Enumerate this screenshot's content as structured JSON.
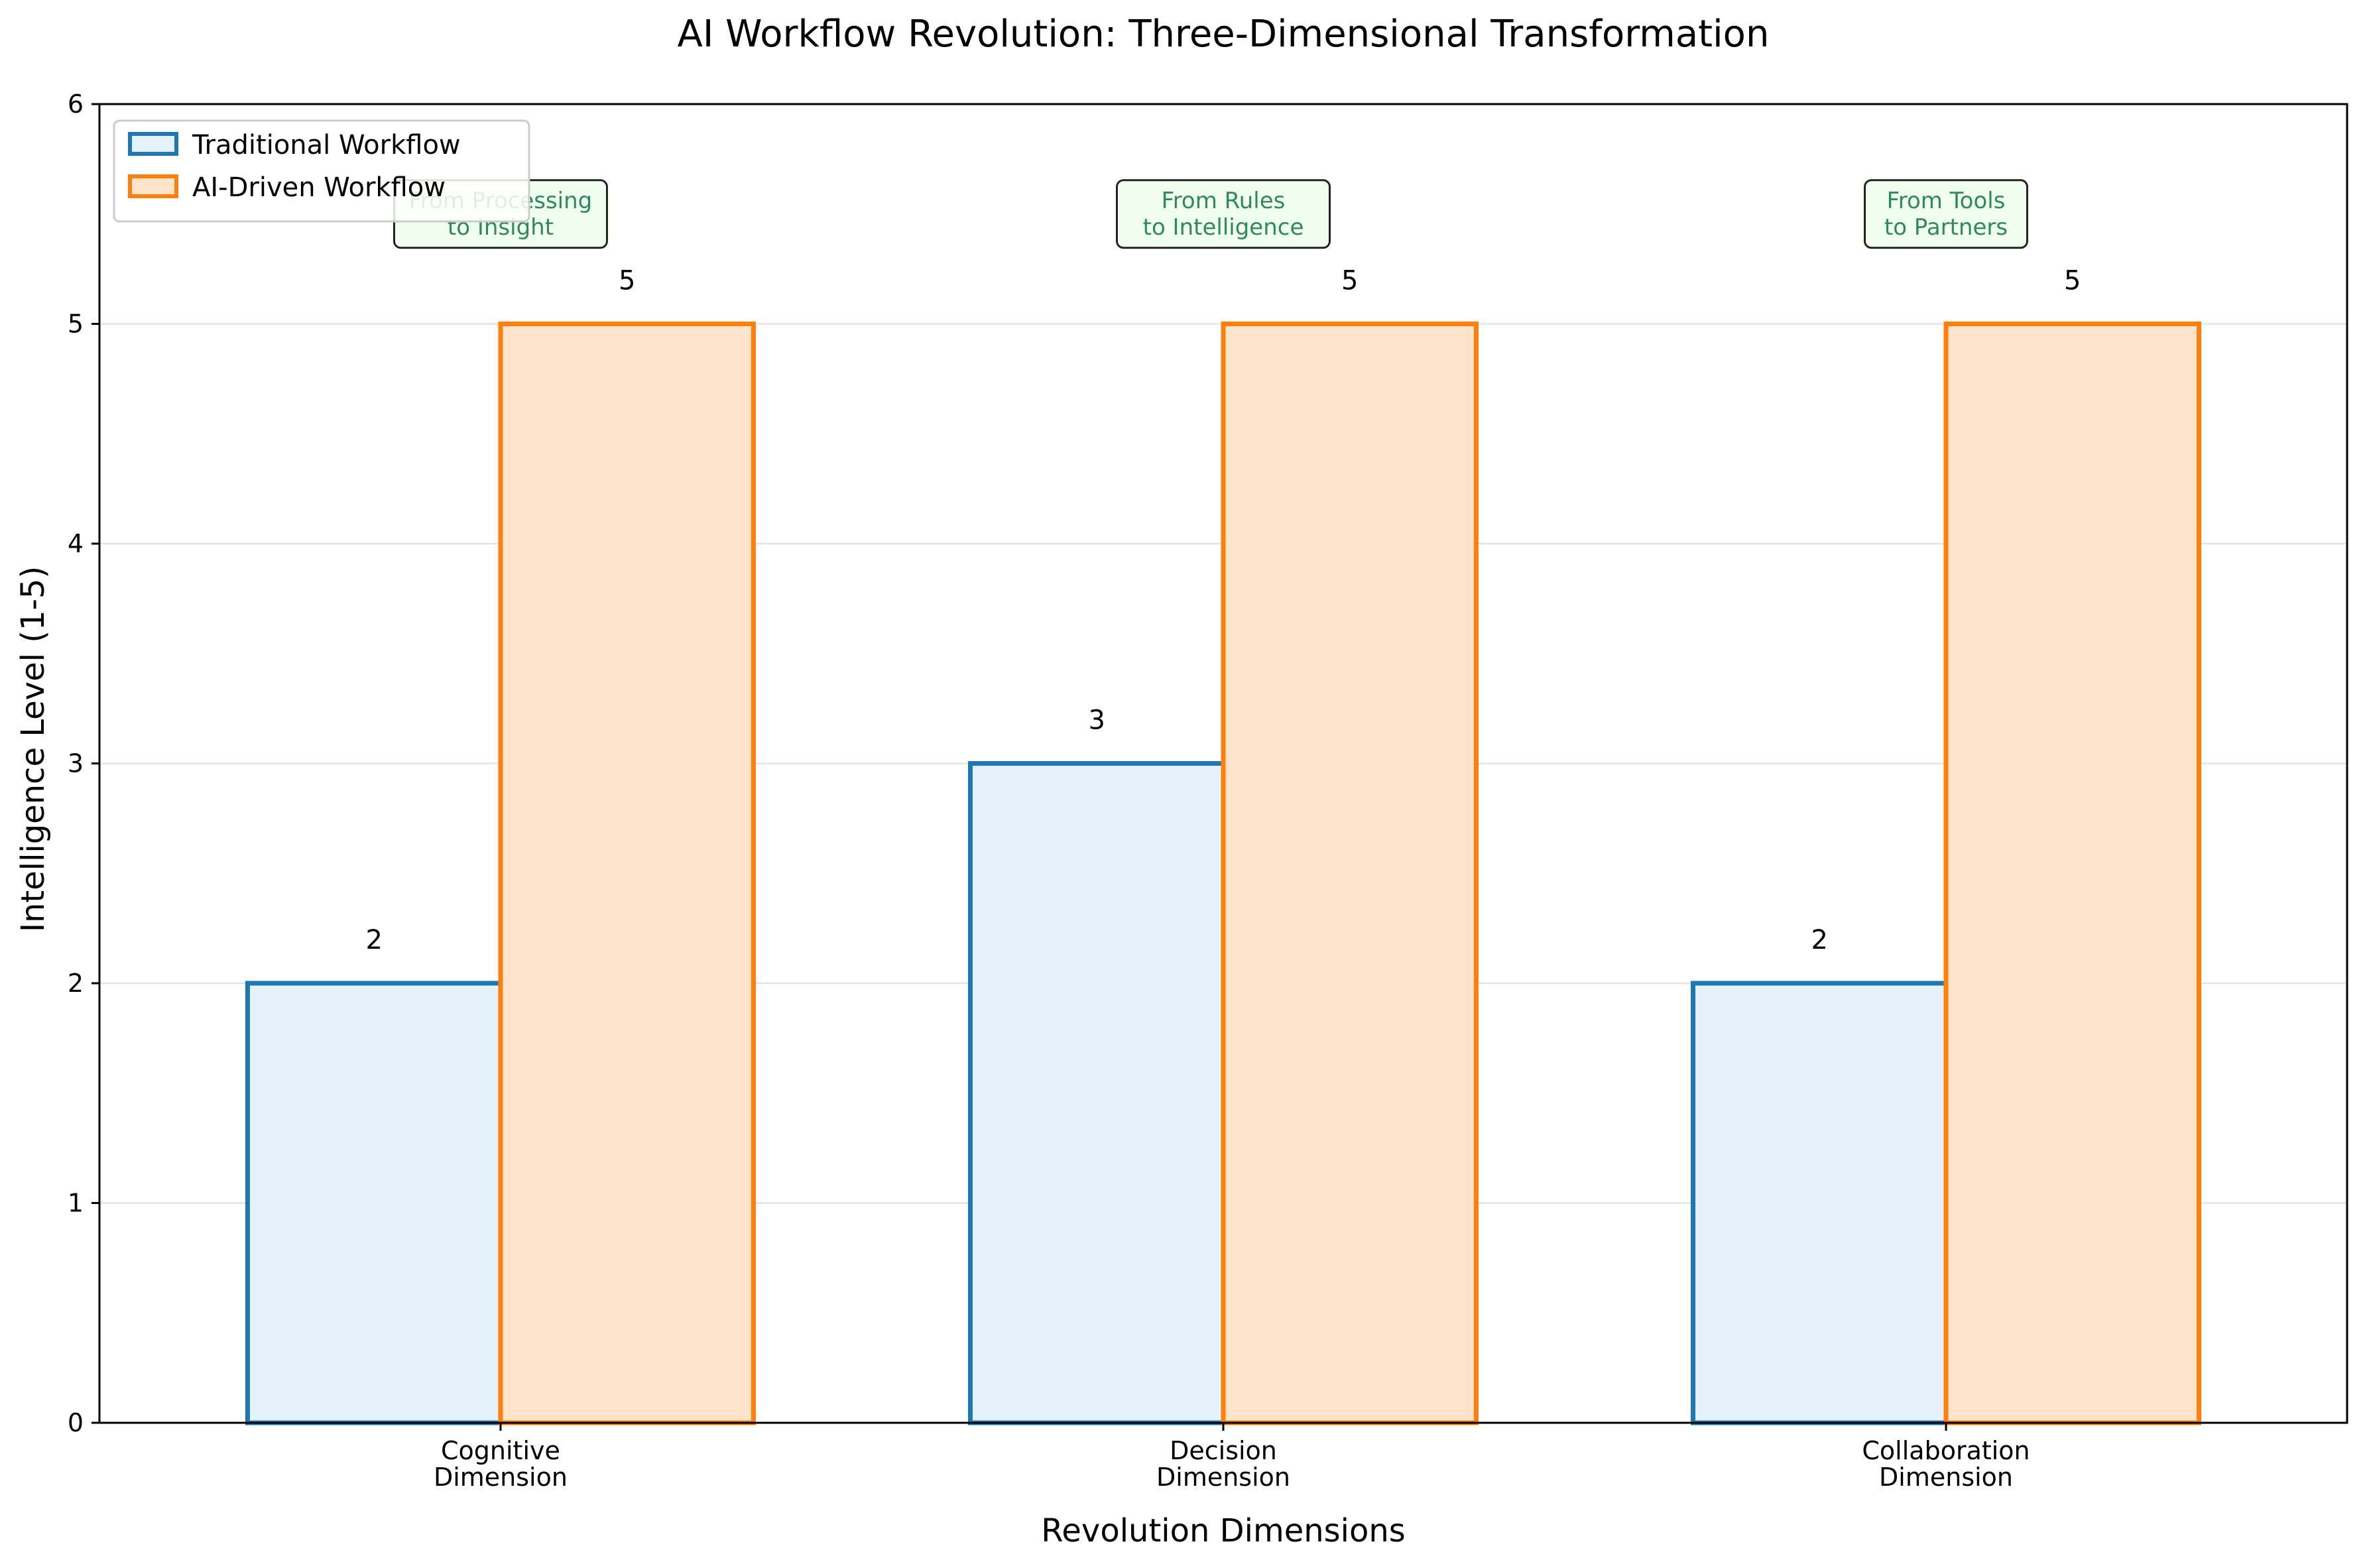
{
  "chart_data": {
    "type": "bar",
    "title": "AI Workflow Revolution: Three-Dimensional Transformation",
    "xlabel": "Revolution Dimensions",
    "ylabel": "Intelligence Level (1-5)",
    "ylim": [
      0,
      6
    ],
    "yticks": [
      0,
      1,
      2,
      3,
      4,
      5,
      6
    ],
    "grid": "y",
    "legend_position": "top-left",
    "categories": [
      [
        "Cognitive",
        "Dimension"
      ],
      [
        "Decision",
        "Dimension"
      ],
      [
        "Collaboration",
        "Dimension"
      ]
    ],
    "series": [
      {
        "name": "Traditional Workflow",
        "values": [
          2,
          3,
          2
        ],
        "edge_color": "#1f77b4",
        "fill_color": "#e6f2fb"
      },
      {
        "name": "AI-Driven Workflow",
        "values": [
          5,
          5,
          5
        ],
        "edge_color": "#ff7f0e",
        "fill_color": "#fde4cb"
      }
    ],
    "annotations": [
      {
        "category": 0,
        "y": 5.5,
        "lines": [
          "From Processing",
          "to Insight"
        ]
      },
      {
        "category": 1,
        "y": 5.5,
        "lines": [
          "From Rules",
          "to Intelligence"
        ]
      },
      {
        "category": 2,
        "y": 5.5,
        "lines": [
          "From Tools",
          "to Partners"
        ]
      }
    ],
    "colors": {
      "annotation_text": "#2e8b57",
      "annotation_fill": "#f0fff0",
      "annotation_edge": "#222222",
      "grid": "#e3e3e3"
    }
  }
}
